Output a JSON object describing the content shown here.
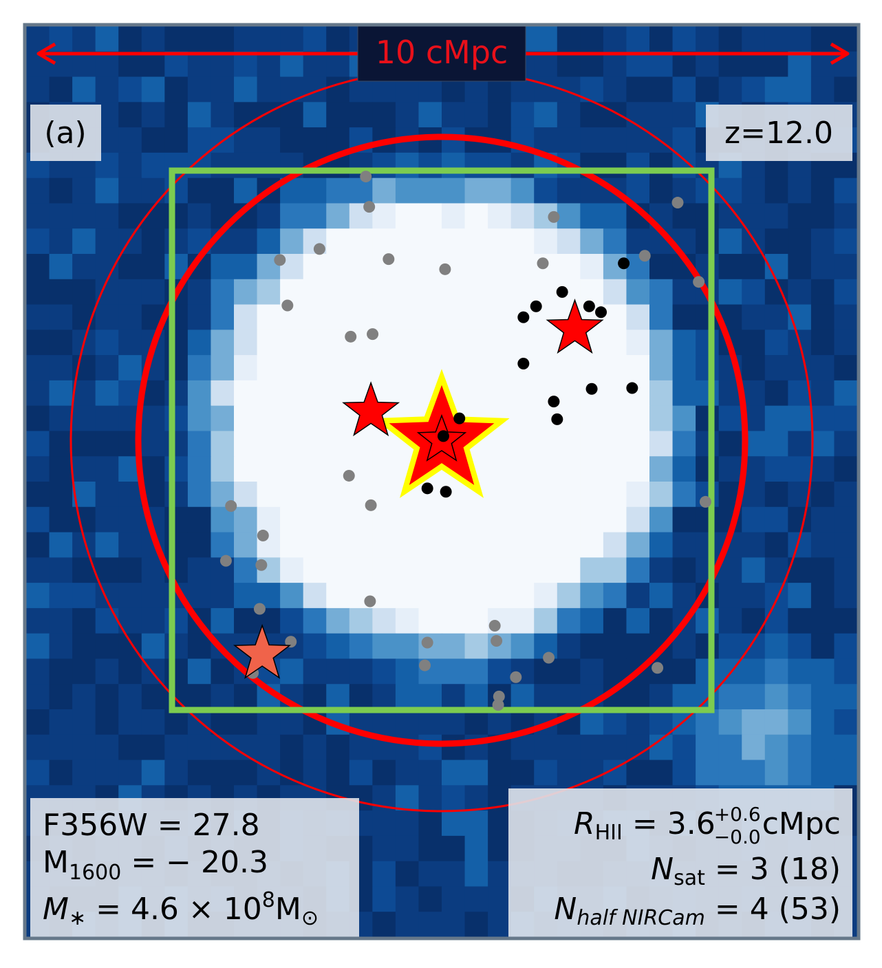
{
  "chart_data": {
    "type": "scatter",
    "panel_label": "(a)",
    "redshift_label": "z=12.0",
    "scale_bar_label": "10 cMpc",
    "colors": {
      "frame": "#66788a",
      "scale_bar": "#ff0000",
      "scale_box": "#0a1535",
      "box_outline": "#7ccc50",
      "ring": "#ff0000",
      "inner_stars": "#ff0000",
      "center_star_edge": "#ffff00",
      "outer_star": "#f0634a",
      "satellites": "#000000",
      "neighbors": "#808080",
      "text_box_bg": "#dfe3ea"
    },
    "background_map": {
      "grid": [
        36,
        36
      ],
      "colormap": "Blues",
      "ionized_bubble_color": "#f5f9fd",
      "neutral_color": "#0a306b"
    },
    "rings": [
      {
        "name": "bubble",
        "cx": 0,
        "cy": 0,
        "r": 3.6,
        "style": "thick"
      },
      {
        "name": "outer",
        "cx": 0,
        "cy": 0,
        "r": 4.4,
        "style": "thin"
      }
    ],
    "survey_box": {
      "x0": -3.2,
      "x1": 3.2,
      "y0": -3.2,
      "y1": 3.2
    },
    "stars": [
      {
        "name": "central-galaxy",
        "x": 0.0,
        "y": 0.0,
        "size": "large",
        "color": "#ff0000",
        "edge": "#ffff00"
      },
      {
        "name": "inner-star-center",
        "x": 0.0,
        "y": 0.0,
        "size": "tiny",
        "color": "#ff0000",
        "edge": "#000000"
      },
      {
        "name": "star-left",
        "x": -0.84,
        "y": 0.34,
        "size": "medium",
        "color": "#ff0000",
        "edge": "#000000"
      },
      {
        "name": "star-right",
        "x": 1.58,
        "y": 1.32,
        "size": "medium",
        "color": "#ff0000",
        "edge": "#000000"
      },
      {
        "name": "star-outer",
        "x": -2.13,
        "y": -2.54,
        "size": "medium",
        "color": "#f0634a",
        "edge": "#000000"
      }
    ],
    "satellites": [
      [
        0.02,
        0.05
      ],
      [
        0.21,
        0.26
      ],
      [
        -0.17,
        -0.57
      ],
      [
        0.05,
        -0.61
      ],
      [
        1.43,
        1.76
      ],
      [
        2.16,
        2.1
      ],
      [
        0.97,
        1.46
      ],
      [
        1.12,
        1.59
      ],
      [
        1.75,
        1.59
      ],
      [
        1.89,
        1.52
      ],
      [
        0.97,
        0.91
      ],
      [
        1.33,
        0.46
      ],
      [
        1.78,
        0.61
      ],
      [
        2.26,
        0.62
      ],
      [
        1.37,
        0.25
      ]
    ],
    "neighbors": [
      [
        -0.9,
        3.13
      ],
      [
        -0.86,
        2.77
      ],
      [
        -1.45,
        2.27
      ],
      [
        -1.92,
        2.14
      ],
      [
        -0.63,
        2.15
      ],
      [
        0.04,
        2.03
      ],
      [
        1.2,
        2.1
      ],
      [
        2.41,
        2.19
      ],
      [
        1.33,
        2.65
      ],
      [
        2.8,
        2.82
      ],
      [
        3.05,
        1.88
      ],
      [
        -1.83,
        1.6
      ],
      [
        -1.08,
        1.23
      ],
      [
        -0.82,
        1.26
      ],
      [
        -1.1,
        -0.42
      ],
      [
        -0.84,
        -0.77
      ],
      [
        -2.5,
        -0.78
      ],
      [
        -2.12,
        -1.13
      ],
      [
        -2.56,
        -1.43
      ],
      [
        -2.14,
        -1.48
      ],
      [
        -2.16,
        -2.0
      ],
      [
        -1.79,
        -2.39
      ],
      [
        -0.85,
        -1.91
      ],
      [
        -0.17,
        -2.4
      ],
      [
        -0.2,
        -2.67
      ],
      [
        0.63,
        -2.2
      ],
      [
        0.65,
        -2.38
      ],
      [
        1.27,
        -2.58
      ],
      [
        0.88,
        -2.81
      ],
      [
        0.68,
        -3.04
      ],
      [
        0.67,
        -3.14
      ],
      [
        2.56,
        -2.7
      ],
      [
        3.13,
        -0.73
      ],
      [
        -2.24,
        -2.76
      ]
    ],
    "annotations_left": {
      "f356w": "F356W = 27.8",
      "m1600_sym": "M",
      "m1600_sub": "1600",
      "m1600_val": " = − 20.3",
      "mstar_sym": "M",
      "mstar_sub": "∗",
      "mstar_eq": " = 4.6 × 10",
      "mstar_exp": "8",
      "mstar_unit": "M",
      "mstar_unit_sub": "⊙"
    },
    "annotations_right": {
      "rhii_sym": "R",
      "rhii_sub": "HII",
      "rhii_eq": " = 3.6",
      "rhii_up": "+0.6",
      "rhii_down": "−0.0",
      "rhii_unit": "cMpc",
      "nsat_sym": "N",
      "nsat_sub": "sat",
      "nsat_val": " = 3 (18)",
      "nhalf_sym": "N",
      "nhalf_sub": "half NIRCam",
      "nhalf_val": " = 4 (53)"
    }
  }
}
